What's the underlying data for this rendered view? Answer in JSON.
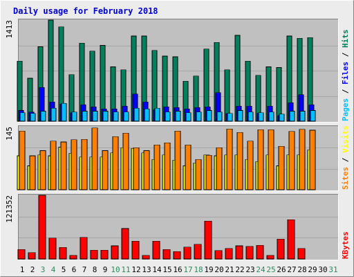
{
  "title": "Daily usage for February 2018",
  "colors": {
    "page_bg": "#ececec",
    "panel_bg": "#c0c0c0",
    "title": "#0000cc",
    "hits": "#00805c",
    "files": "#0000ff",
    "pages": "#00c0ff",
    "visits": "#ff8000",
    "sites": "#ffff00",
    "kbytes": "#ff0000",
    "grid": "#a6a6a6",
    "day_weekday": "#000000",
    "day_weekend": "#2a8a5a"
  },
  "chart_data": [
    {
      "type": "bar",
      "panel": "hits-files-pages",
      "ymax_label": "1413",
      "ylim": [
        0,
        1413
      ],
      "legend": {
        "pages": "Pages",
        "files": "Files",
        "hits": "Hits",
        "sep": " / "
      },
      "categories": [
        "1",
        "2",
        "3",
        "4",
        "5",
        "6",
        "7",
        "8",
        "9",
        "10",
        "11",
        "12",
        "13",
        "14",
        "15",
        "16",
        "17",
        "18",
        "19",
        "20",
        "21",
        "22",
        "23",
        "24",
        "25",
        "26",
        "27",
        "28",
        "29",
        "30",
        "31"
      ],
      "series": [
        {
          "name": "Hits",
          "values": [
            840,
            600,
            1040,
            1413,
            1320,
            650,
            1090,
            980,
            1060,
            760,
            720,
            1190,
            1190,
            990,
            910,
            900,
            560,
            630,
            1010,
            1100,
            720,
            1200,
            840,
            640,
            760,
            750,
            1190,
            1160,
            1170,
            null,
            null
          ]
        },
        {
          "name": "Files",
          "values": [
            150,
            130,
            470,
            270,
            240,
            120,
            230,
            200,
            170,
            170,
            210,
            380,
            270,
            160,
            200,
            190,
            170,
            190,
            200,
            400,
            110,
            210,
            210,
            110,
            210,
            80,
            260,
            370,
            230,
            null,
            null
          ]
        },
        {
          "name": "Pages",
          "values": [
            120,
            110,
            140,
            180,
            250,
            130,
            140,
            140,
            140,
            130,
            130,
            180,
            170,
            180,
            130,
            140,
            120,
            130,
            150,
            130,
            110,
            150,
            130,
            120,
            130,
            100,
            140,
            140,
            150,
            null,
            null
          ]
        }
      ]
    },
    {
      "type": "bar",
      "panel": "visits-sites",
      "ymax_label": "145",
      "ylim": [
        0,
        145
      ],
      "legend": {
        "sites": "Sites",
        "visits": "Visits",
        "sep": " / "
      },
      "categories": [
        "1",
        "2",
        "3",
        "4",
        "5",
        "6",
        "7",
        "8",
        "9",
        "10",
        "11",
        "12",
        "13",
        "14",
        "15",
        "16",
        "17",
        "18",
        "19",
        "20",
        "21",
        "22",
        "23",
        "24",
        "25",
        "26",
        "27",
        "28",
        "29",
        "30",
        "31"
      ],
      "series": [
        {
          "name": "Visits",
          "values": [
            135,
            78,
            90,
            112,
            110,
            115,
            116,
            142,
            90,
            122,
            130,
            97,
            90,
            103,
            108,
            135,
            103,
            70,
            79,
            97,
            140,
            132,
            112,
            138,
            138,
            100,
            134,
            139,
            137,
            null,
            null
          ]
        },
        {
          "name": "Sites",
          "values": [
            78,
            55,
            80,
            78,
            98,
            84,
            75,
            75,
            75,
            85,
            97,
            95,
            85,
            70,
            80,
            68,
            55,
            62,
            80,
            78,
            80,
            80,
            70,
            65,
            80,
            55,
            80,
            80,
            92,
            null,
            null
          ]
        }
      ]
    },
    {
      "type": "bar",
      "panel": "kbytes",
      "ymax_label": "121352",
      "ylim": [
        0,
        121352
      ],
      "legend": {
        "kbytes": "KBytes"
      },
      "categories": [
        "1",
        "2",
        "3",
        "4",
        "5",
        "6",
        "7",
        "8",
        "9",
        "10",
        "11",
        "12",
        "13",
        "14",
        "15",
        "16",
        "17",
        "18",
        "19",
        "20",
        "21",
        "22",
        "23",
        "24",
        "25",
        "26",
        "27",
        "28",
        "29",
        "30",
        "31"
      ],
      "series": [
        {
          "name": "KBytes",
          "values": [
            18000,
            12000,
            121352,
            40000,
            22000,
            7000,
            41000,
            17000,
            17000,
            25000,
            58000,
            34000,
            7000,
            34000,
            18000,
            14000,
            23000,
            28000,
            72000,
            16000,
            20000,
            25000,
            24000,
            26000,
            7000,
            38000,
            75000,
            20000,
            null,
            null,
            null
          ]
        }
      ]
    }
  ],
  "x_axis": {
    "labels": [
      "1",
      "2",
      "3",
      "4",
      "5",
      "6",
      "7",
      "8",
      "9",
      "10",
      "11",
      "12",
      "13",
      "14",
      "15",
      "16",
      "17",
      "18",
      "19",
      "20",
      "21",
      "22",
      "23",
      "24",
      "25",
      "26",
      "27",
      "28",
      "29",
      "30",
      "31"
    ],
    "weekend_days": [
      "3",
      "4",
      "10",
      "11",
      "17",
      "18",
      "24",
      "25",
      "31"
    ]
  }
}
